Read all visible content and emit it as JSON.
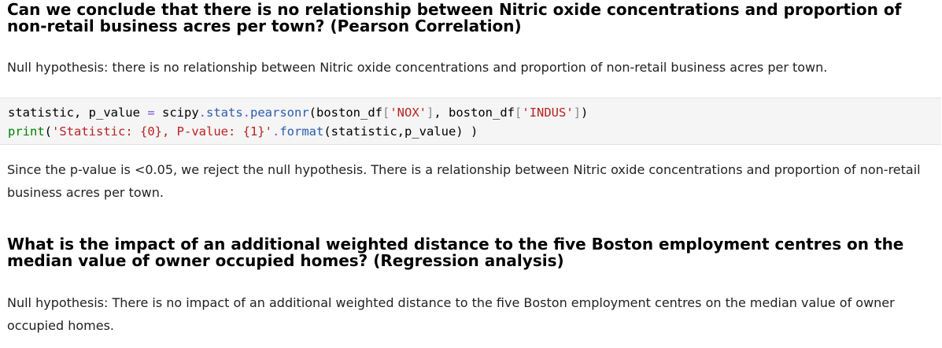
{
  "section1": {
    "heading": "Can we conclude that there is no relationship between Nitric oxide concentrations and proportion of non-retail business acres per town? (Pearson Correlation)",
    "null_hypothesis": "Null hypothesis: there is no relationship between Nitric oxide concentrations and proportion of non-retail business acres per town.",
    "code": {
      "line1": {
        "t1": "statistic, p_value ",
        "t2": "=",
        "t3": " scipy",
        "t4": ".",
        "t5": "stats",
        "t6": ".",
        "t7": "pearsonr",
        "t8": "(boston_df",
        "t9": "[",
        "t10": "'NOX'",
        "t11": "]",
        "t12": ", boston_df",
        "t13": "[",
        "t14": "'INDUS'",
        "t15": "]",
        "t16": ")"
      },
      "line2": {
        "t1": "print",
        "t2": "(",
        "t3": "'Statistic: {0}, P-value: {1}'",
        "t4": ".",
        "t5": "format",
        "t6": "(statistic,p_value) )"
      }
    },
    "conclusion": "Since the p-value is <0.05, we reject the null hypothesis. There is a relationship between Nitric oxide concentrations and proportion of non-retail business acres per town."
  },
  "section2": {
    "heading": "What is the impact of an additional weighted distance to the five Boston employment centres on the median value of owner occupied homes? (Regression analysis)",
    "null_hypothesis": "Null hypothesis: There is no impact of an additional weighted distance to the five Boston employment centres on the median value of owner occupied homes."
  }
}
